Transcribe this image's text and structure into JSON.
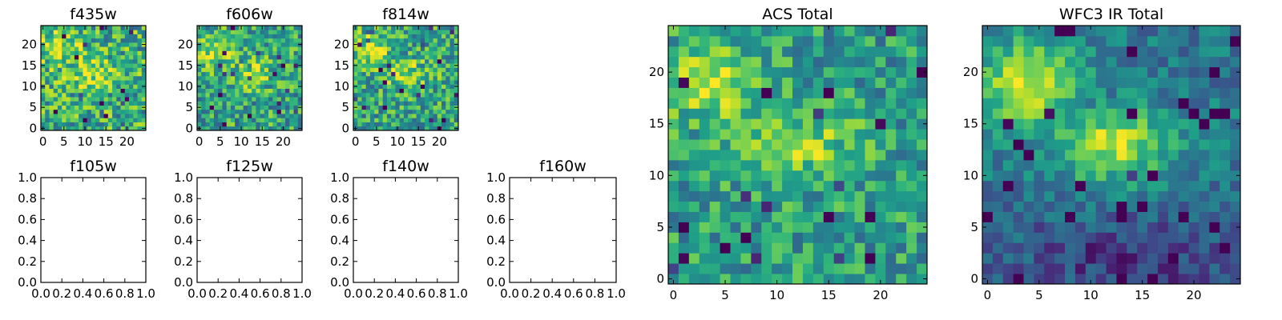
{
  "chart_data": [
    {
      "id": "f435w",
      "type": "heatmap",
      "title": "f435w",
      "xlim": [
        -0.5,
        24.5
      ],
      "ylim": [
        -0.5,
        24.5
      ],
      "xticks": [
        "0",
        "5",
        "10",
        "15",
        "20"
      ],
      "yticks": [
        "0",
        "5",
        "10",
        "15",
        "20"
      ],
      "colormap": "viridis",
      "grid_size": [
        25,
        25
      ]
    },
    {
      "id": "f606w",
      "type": "heatmap",
      "title": "f606w",
      "xlim": [
        -0.5,
        24.5
      ],
      "ylim": [
        -0.5,
        24.5
      ],
      "xticks": [
        "0",
        "5",
        "10",
        "15",
        "20"
      ],
      "yticks": [
        "0",
        "5",
        "10",
        "15",
        "20"
      ],
      "colormap": "viridis",
      "grid_size": [
        25,
        25
      ]
    },
    {
      "id": "f814w",
      "type": "heatmap",
      "title": "f814w",
      "xlim": [
        -0.5,
        24.5
      ],
      "ylim": [
        -0.5,
        24.5
      ],
      "xticks": [
        "0",
        "5",
        "10",
        "15",
        "20"
      ],
      "yticks": [
        "0",
        "5",
        "10",
        "15",
        "20"
      ],
      "colormap": "viridis",
      "grid_size": [
        25,
        25
      ]
    },
    {
      "id": "f105w",
      "type": "scatter",
      "title": "f105w",
      "xlim": [
        0.0,
        1.0
      ],
      "ylim": [
        0.0,
        1.0
      ],
      "xticks": [
        "0.0",
        "0.2",
        "0.4",
        "0.6",
        "0.8",
        "1.0"
      ],
      "yticks": [
        "0.0",
        "0.2",
        "0.4",
        "0.6",
        "0.8",
        "1.0"
      ],
      "empty": true
    },
    {
      "id": "f125w",
      "type": "scatter",
      "title": "f125w",
      "xlim": [
        0.0,
        1.0
      ],
      "ylim": [
        0.0,
        1.0
      ],
      "xticks": [
        "0.0",
        "0.2",
        "0.4",
        "0.6",
        "0.8",
        "1.0"
      ],
      "yticks": [
        "0.0",
        "0.2",
        "0.4",
        "0.6",
        "0.8",
        "1.0"
      ],
      "empty": true
    },
    {
      "id": "f140w",
      "type": "scatter",
      "title": "f140w",
      "xlim": [
        0.0,
        1.0
      ],
      "ylim": [
        0.0,
        1.0
      ],
      "xticks": [
        "0.0",
        "0.2",
        "0.4",
        "0.6",
        "0.8",
        "1.0"
      ],
      "yticks": [
        "0.0",
        "0.2",
        "0.4",
        "0.6",
        "0.8",
        "1.0"
      ],
      "empty": true
    },
    {
      "id": "f160w",
      "type": "scatter",
      "title": "f160w",
      "xlim": [
        0.0,
        1.0
      ],
      "ylim": [
        0.0,
        1.0
      ],
      "xticks": [
        "0.0",
        "0.2",
        "0.4",
        "0.6",
        "0.8",
        "1.0"
      ],
      "yticks": [
        "0.0",
        "0.2",
        "0.4",
        "0.6",
        "0.8",
        "1.0"
      ],
      "empty": true
    },
    {
      "id": "acs_total",
      "type": "heatmap",
      "title": "ACS Total",
      "xlim": [
        -0.5,
        24.5
      ],
      "ylim": [
        -0.5,
        24.5
      ],
      "xticks": [
        "0",
        "5",
        "10",
        "15",
        "20"
      ],
      "yticks": [
        "0",
        "5",
        "10",
        "15",
        "20"
      ],
      "colormap": "viridis",
      "grid_size": [
        25,
        25
      ]
    },
    {
      "id": "wfc3_ir_total",
      "type": "heatmap",
      "title": "WFC3 IR Total",
      "xlim": [
        -0.5,
        24.5
      ],
      "ylim": [
        -0.5,
        24.5
      ],
      "xticks": [
        "0",
        "5",
        "10",
        "15",
        "20"
      ],
      "yticks": [
        "0",
        "5",
        "10",
        "15",
        "20"
      ],
      "colormap": "viridis",
      "grid_size": [
        25,
        25
      ]
    }
  ]
}
